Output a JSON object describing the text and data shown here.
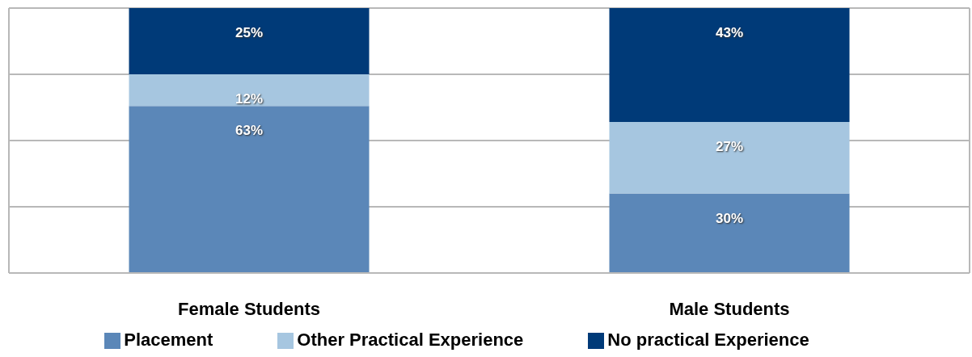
{
  "chart_data": {
    "type": "bar",
    "stacked": true,
    "categories": [
      "Female Students",
      "Male Students"
    ],
    "series": [
      {
        "name": "Placement",
        "color": "#5b87b8",
        "values": [
          63,
          30
        ],
        "value_labels": [
          "63%",
          "30%"
        ]
      },
      {
        "name": "Other Practical Experience",
        "color": "#a6c6e0",
        "values": [
          12,
          27
        ],
        "value_labels": [
          "12%",
          "27%"
        ]
      },
      {
        "name": "No practical Experience",
        "color": "#003a78",
        "values": [
          25,
          43
        ],
        "value_labels": [
          "25%",
          "43%"
        ]
      }
    ],
    "ylim": [
      0,
      100
    ],
    "yticks": [
      {
        "value": 0,
        "label": null
      },
      {
        "value": 25,
        "label": null
      },
      {
        "value": 50,
        "label": null
      },
      {
        "value": 75,
        "label": null
      },
      {
        "value": 100,
        "label": null
      }
    ],
    "tick_labels": "x",
    "grid": "y",
    "legend": "bottom"
  }
}
